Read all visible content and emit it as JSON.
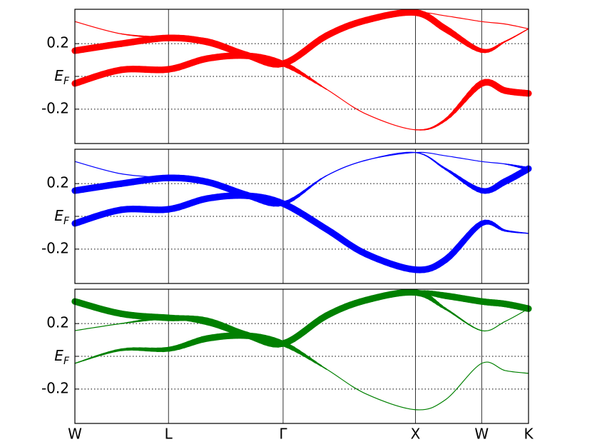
{
  "chart_data": [
    {
      "type": "line",
      "xlim": [
        0,
        3.427
      ],
      "ylim": [
        -0.41,
        0.41
      ],
      "xticks": [
        0,
        0.707,
        1.573,
        2.573,
        3.073,
        3.427
      ],
      "yticks": [
        0.2,
        {
          "value": 0,
          "label": "EF"
        },
        -0.2
      ],
      "grid": true,
      "x": [
        0,
        0.35,
        0.707,
        1.0,
        1.3,
        1.573,
        1.9,
        2.2,
        2.573,
        2.8,
        3.073,
        3.25,
        3.427
      ],
      "series": [
        {
          "color": "#ff0000",
          "values": [
            -0.043,
            0.04,
            0.043,
            0.109,
            0.126,
            0.078,
            -0.078,
            -0.23,
            -0.326,
            -0.265,
            -0.043,
            -0.087,
            -0.104
          ],
          "weights": [
            1,
            1,
            1,
            1,
            1,
            0.8,
            0,
            0,
            0,
            0.3,
            1,
            1,
            1
          ]
        },
        {
          "color": "#ff0000",
          "values": [
            0.157,
            0.2,
            0.235,
            0.21,
            0.13,
            0.078,
            0.248,
            0.343,
            0.39,
            0.29,
            0.157,
            0.213,
            0.291
          ],
          "weights": [
            1,
            1,
            1,
            1,
            1,
            1,
            1,
            1,
            1,
            1,
            0.6,
            0.1,
            0
          ]
        },
        {
          "color": "#ff0000",
          "values": [
            0.335,
            0.26,
            0.235,
            0.225,
            0.14,
            0.078,
            0.248,
            0.343,
            0.39,
            0.37,
            0.335,
            0.32,
            0.291
          ],
          "weights": [
            0,
            0,
            0.3,
            0.3,
            0.3,
            0.3,
            0,
            0,
            0,
            0,
            0,
            0,
            0
          ]
        }
      ]
    },
    {
      "type": "line",
      "xlim": [
        0,
        3.427
      ],
      "ylim": [
        -0.41,
        0.41
      ],
      "xticks": [
        0,
        0.707,
        1.573,
        2.573,
        3.073,
        3.427
      ],
      "yticks": [
        0.2,
        {
          "value": 0,
          "label": "EF"
        },
        -0.2
      ],
      "grid": true,
      "x": [
        0,
        0.35,
        0.707,
        1.0,
        1.3,
        1.573,
        1.9,
        2.2,
        2.573,
        2.8,
        3.073,
        3.25,
        3.427
      ],
      "series": [
        {
          "color": "#0000ff",
          "values": [
            -0.043,
            0.04,
            0.043,
            0.109,
            0.126,
            0.078,
            -0.078,
            -0.23,
            -0.326,
            -0.265,
            -0.043,
            -0.087,
            -0.104
          ],
          "weights": [
            1,
            1,
            1,
            1,
            1,
            1,
            1,
            1,
            1,
            1,
            0.8,
            0.2,
            0
          ]
        },
        {
          "color": "#0000ff",
          "values": [
            0.157,
            0.2,
            0.235,
            0.21,
            0.13,
            0.078,
            0.248,
            0.343,
            0.39,
            0.29,
            0.157,
            0.213,
            0.291
          ],
          "weights": [
            1,
            1,
            1,
            1,
            1,
            0.6,
            0,
            0,
            0,
            0.2,
            0.8,
            1,
            1
          ]
        },
        {
          "color": "#0000ff",
          "values": [
            0.335,
            0.26,
            0.235,
            0.225,
            0.14,
            0.078,
            0.248,
            0.343,
            0.39,
            0.37,
            0.335,
            0.32,
            0.291
          ],
          "weights": [
            0,
            0,
            0,
            0,
            0,
            0,
            0,
            0,
            0,
            0,
            0,
            0,
            0.5
          ]
        }
      ]
    },
    {
      "type": "line",
      "xlim": [
        0,
        3.427
      ],
      "ylim": [
        -0.41,
        0.41
      ],
      "xticks": [
        {
          "value": 0,
          "label": "W"
        },
        {
          "value": 0.707,
          "label": "L"
        },
        {
          "value": 1.573,
          "label": "Γ"
        },
        {
          "value": 2.573,
          "label": "X"
        },
        {
          "value": 3.073,
          "label": "W"
        },
        {
          "value": 3.427,
          "label": "K"
        }
      ],
      "yticks": [
        0.2,
        {
          "value": 0,
          "label": "EF"
        },
        -0.2
      ],
      "grid": true,
      "x": [
        0,
        0.35,
        0.707,
        1.0,
        1.3,
        1.573,
        1.9,
        2.2,
        2.573,
        2.8,
        3.073,
        3.25,
        3.427
      ],
      "series": [
        {
          "color": "#008000",
          "values": [
            -0.043,
            0.04,
            0.043,
            0.109,
            0.126,
            0.078,
            -0.078,
            -0.23,
            -0.326,
            -0.265,
            -0.043,
            -0.087,
            -0.104
          ],
          "weights": [
            0,
            0.3,
            0.7,
            1,
            1,
            0.8,
            0,
            0,
            0,
            0,
            0,
            0,
            0
          ]
        },
        {
          "color": "#008000",
          "values": [
            0.157,
            0.2,
            0.235,
            0.21,
            0.13,
            0.078,
            0.248,
            0.343,
            0.39,
            0.29,
            0.157,
            0.213,
            0.291
          ],
          "weights": [
            0,
            0,
            0.5,
            1,
            1,
            1,
            1,
            1,
            1,
            0.2,
            0,
            0,
            0
          ]
        },
        {
          "color": "#008000",
          "values": [
            0.335,
            0.26,
            0.235,
            0.225,
            0.14,
            0.078,
            0.248,
            0.343,
            0.39,
            0.37,
            0.335,
            0.32,
            0.291
          ],
          "weights": [
            1,
            1,
            1,
            0.5,
            0.3,
            0.3,
            0,
            0,
            0.5,
            1,
            1,
            1,
            1
          ]
        }
      ]
    }
  ]
}
